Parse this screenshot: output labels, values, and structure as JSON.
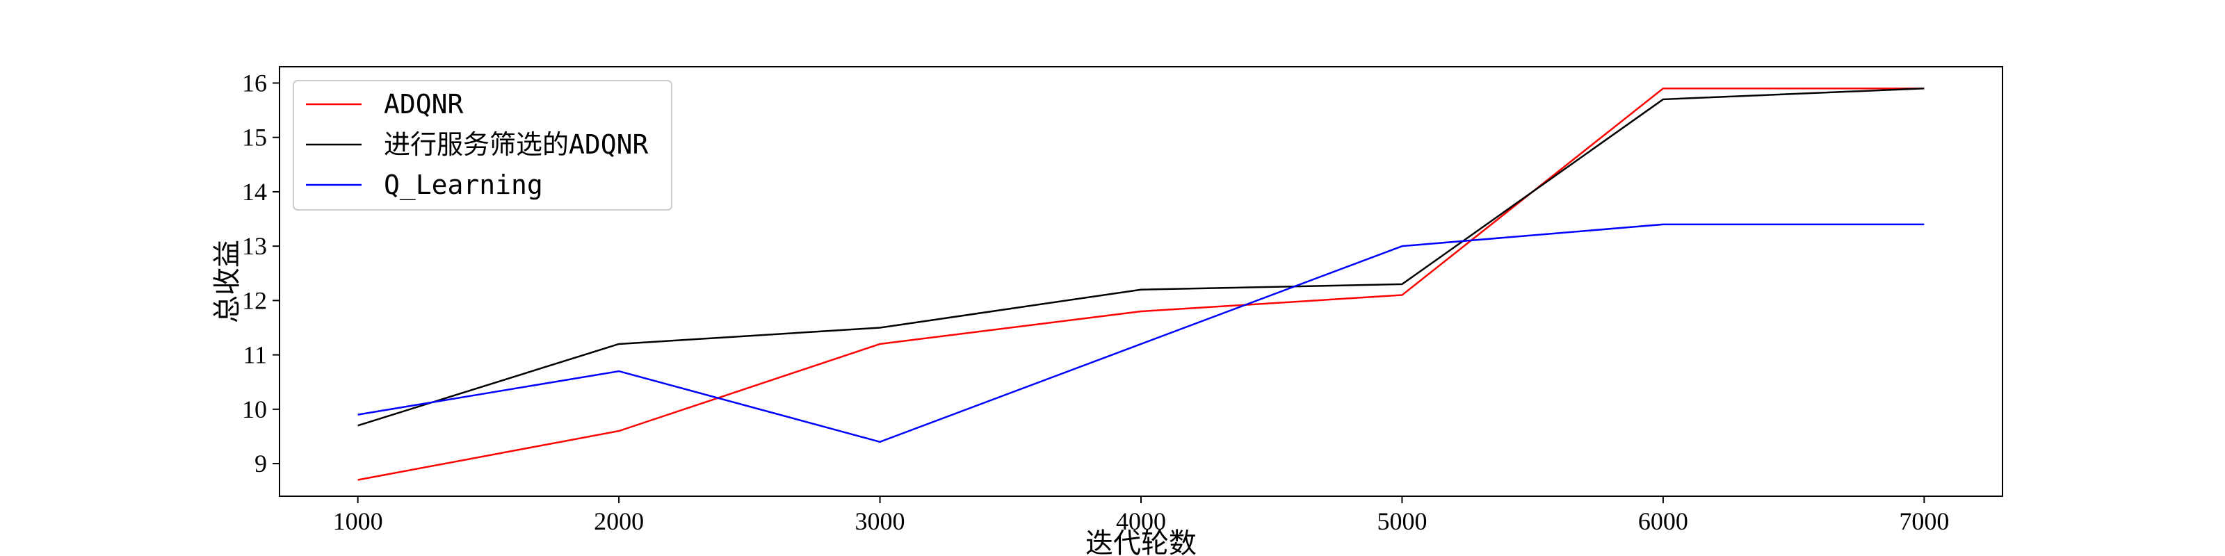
{
  "chart_data": {
    "type": "line",
    "title": "",
    "xlabel": "迭代轮数",
    "ylabel": "总收益",
    "x": [
      1000,
      2000,
      3000,
      4000,
      5000,
      6000,
      7000
    ],
    "xlim": [
      700,
      7300
    ],
    "ylim": [
      8.4,
      16.3
    ],
    "xticks": [
      1000,
      2000,
      3000,
      4000,
      5000,
      6000,
      7000
    ],
    "yticks": [
      9,
      10,
      11,
      12,
      13,
      14,
      15,
      16
    ],
    "grid": false,
    "legend_position": "top-left",
    "series": [
      {
        "name": "ADQNR",
        "color": "#ff0000",
        "values": [
          8.7,
          9.6,
          11.2,
          11.8,
          12.1,
          15.9,
          15.9
        ]
      },
      {
        "name": "进行服务筛选的ADQNR",
        "color": "#000000",
        "values": [
          9.7,
          11.2,
          11.5,
          12.2,
          12.3,
          15.7,
          15.9
        ]
      },
      {
        "name": "Q_Learning",
        "color": "#0000ff",
        "values": [
          9.9,
          10.7,
          9.4,
          11.2,
          13.0,
          13.4,
          13.4
        ]
      }
    ]
  }
}
